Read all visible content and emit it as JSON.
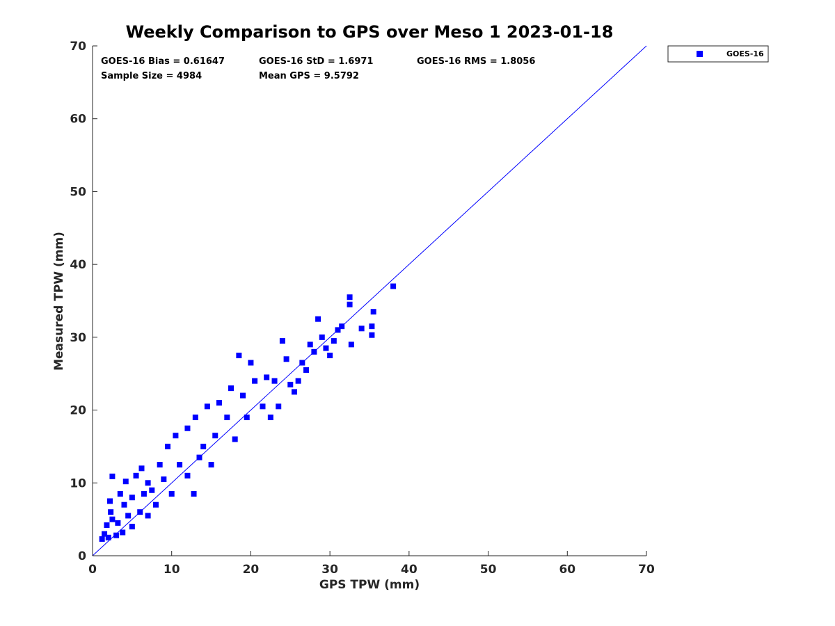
{
  "chart_data": {
    "type": "scatter",
    "title": "Weekly Comparison to GPS over Meso 1 2023-01-18",
    "xlabel": "GPS TPW (mm)",
    "ylabel": "Measured TPW (mm)",
    "xlim": [
      0,
      70
    ],
    "ylim": [
      0,
      70
    ],
    "xticks": [
      "0",
      "10",
      "20",
      "30",
      "40",
      "50",
      "60",
      "70"
    ],
    "yticks": [
      "0",
      "10",
      "20",
      "30",
      "40",
      "50",
      "60",
      "70"
    ],
    "grid": false,
    "legend_position": "outside top-right",
    "series": [
      {
        "name": "GOES-16",
        "color": "#0000ff",
        "marker": "square",
        "sample_points": [
          [
            1.2,
            2.3
          ],
          [
            1.5,
            3.0
          ],
          [
            1.8,
            4.2
          ],
          [
            2.0,
            2.5
          ],
          [
            2.2,
            7.5
          ],
          [
            2.3,
            6.0
          ],
          [
            2.5,
            5.0
          ],
          [
            2.5,
            10.9
          ],
          [
            3.0,
            2.8
          ],
          [
            3.2,
            4.5
          ],
          [
            3.5,
            8.5
          ],
          [
            3.8,
            3.2
          ],
          [
            4.0,
            7.0
          ],
          [
            4.2,
            10.2
          ],
          [
            4.5,
            5.5
          ],
          [
            5.0,
            8.0
          ],
          [
            5.0,
            4.0
          ],
          [
            5.5,
            11.0
          ],
          [
            6.0,
            6.0
          ],
          [
            6.2,
            12.0
          ],
          [
            6.5,
            8.5
          ],
          [
            7.0,
            5.5
          ],
          [
            7.0,
            10.0
          ],
          [
            7.5,
            9.0
          ],
          [
            8.0,
            7.0
          ],
          [
            8.5,
            12.5
          ],
          [
            9.0,
            10.5
          ],
          [
            9.5,
            15.0
          ],
          [
            10.0,
            8.5
          ],
          [
            10.5,
            16.5
          ],
          [
            11.0,
            12.5
          ],
          [
            12.0,
            11.0
          ],
          [
            12.0,
            17.5
          ],
          [
            12.8,
            8.5
          ],
          [
            13.0,
            19.0
          ],
          [
            13.5,
            13.5
          ],
          [
            14.0,
            15.0
          ],
          [
            14.5,
            20.5
          ],
          [
            15.0,
            12.5
          ],
          [
            15.5,
            16.5
          ],
          [
            16.0,
            21.0
          ],
          [
            17.0,
            19.0
          ],
          [
            17.5,
            23.0
          ],
          [
            18.0,
            16.0
          ],
          [
            18.5,
            27.5
          ],
          [
            19.0,
            22.0
          ],
          [
            19.5,
            19.0
          ],
          [
            20.0,
            26.5
          ],
          [
            20.5,
            24.0
          ],
          [
            21.5,
            20.5
          ],
          [
            22.0,
            24.5
          ],
          [
            22.5,
            19.0
          ],
          [
            23.0,
            24.0
          ],
          [
            23.5,
            20.5
          ],
          [
            24.0,
            29.5
          ],
          [
            24.5,
            27.0
          ],
          [
            25.0,
            23.5
          ],
          [
            25.5,
            22.5
          ],
          [
            26.0,
            24.0
          ],
          [
            26.5,
            26.5
          ],
          [
            27.0,
            25.5
          ],
          [
            27.5,
            29.0
          ],
          [
            28.0,
            28.0
          ],
          [
            28.5,
            32.5
          ],
          [
            29.0,
            30.0
          ],
          [
            29.5,
            28.5
          ],
          [
            30.0,
            27.5
          ],
          [
            30.5,
            29.5
          ],
          [
            31.0,
            31.0
          ],
          [
            31.5,
            31.5
          ],
          [
            32.5,
            35.5
          ],
          [
            32.5,
            34.5
          ],
          [
            32.7,
            29.0
          ],
          [
            34.0,
            31.2
          ],
          [
            35.3,
            31.5
          ],
          [
            35.3,
            30.3
          ],
          [
            35.5,
            33.5
          ],
          [
            38.0,
            37.0
          ]
        ]
      }
    ],
    "reference_line": {
      "name": "1:1 line",
      "from": [
        0,
        0
      ],
      "to": [
        70,
        70
      ],
      "color": "#0000ff"
    }
  },
  "stats": {
    "bias": "GOES-16 Bias = 0.61647",
    "std": "GOES-16 StD = 1.6971",
    "rms": "GOES-16 RMS = 1.8056",
    "sample_size": "Sample Size = 4984",
    "mean_gps": "Mean GPS = 9.5792"
  },
  "legend": {
    "label": "GOES-16"
  }
}
